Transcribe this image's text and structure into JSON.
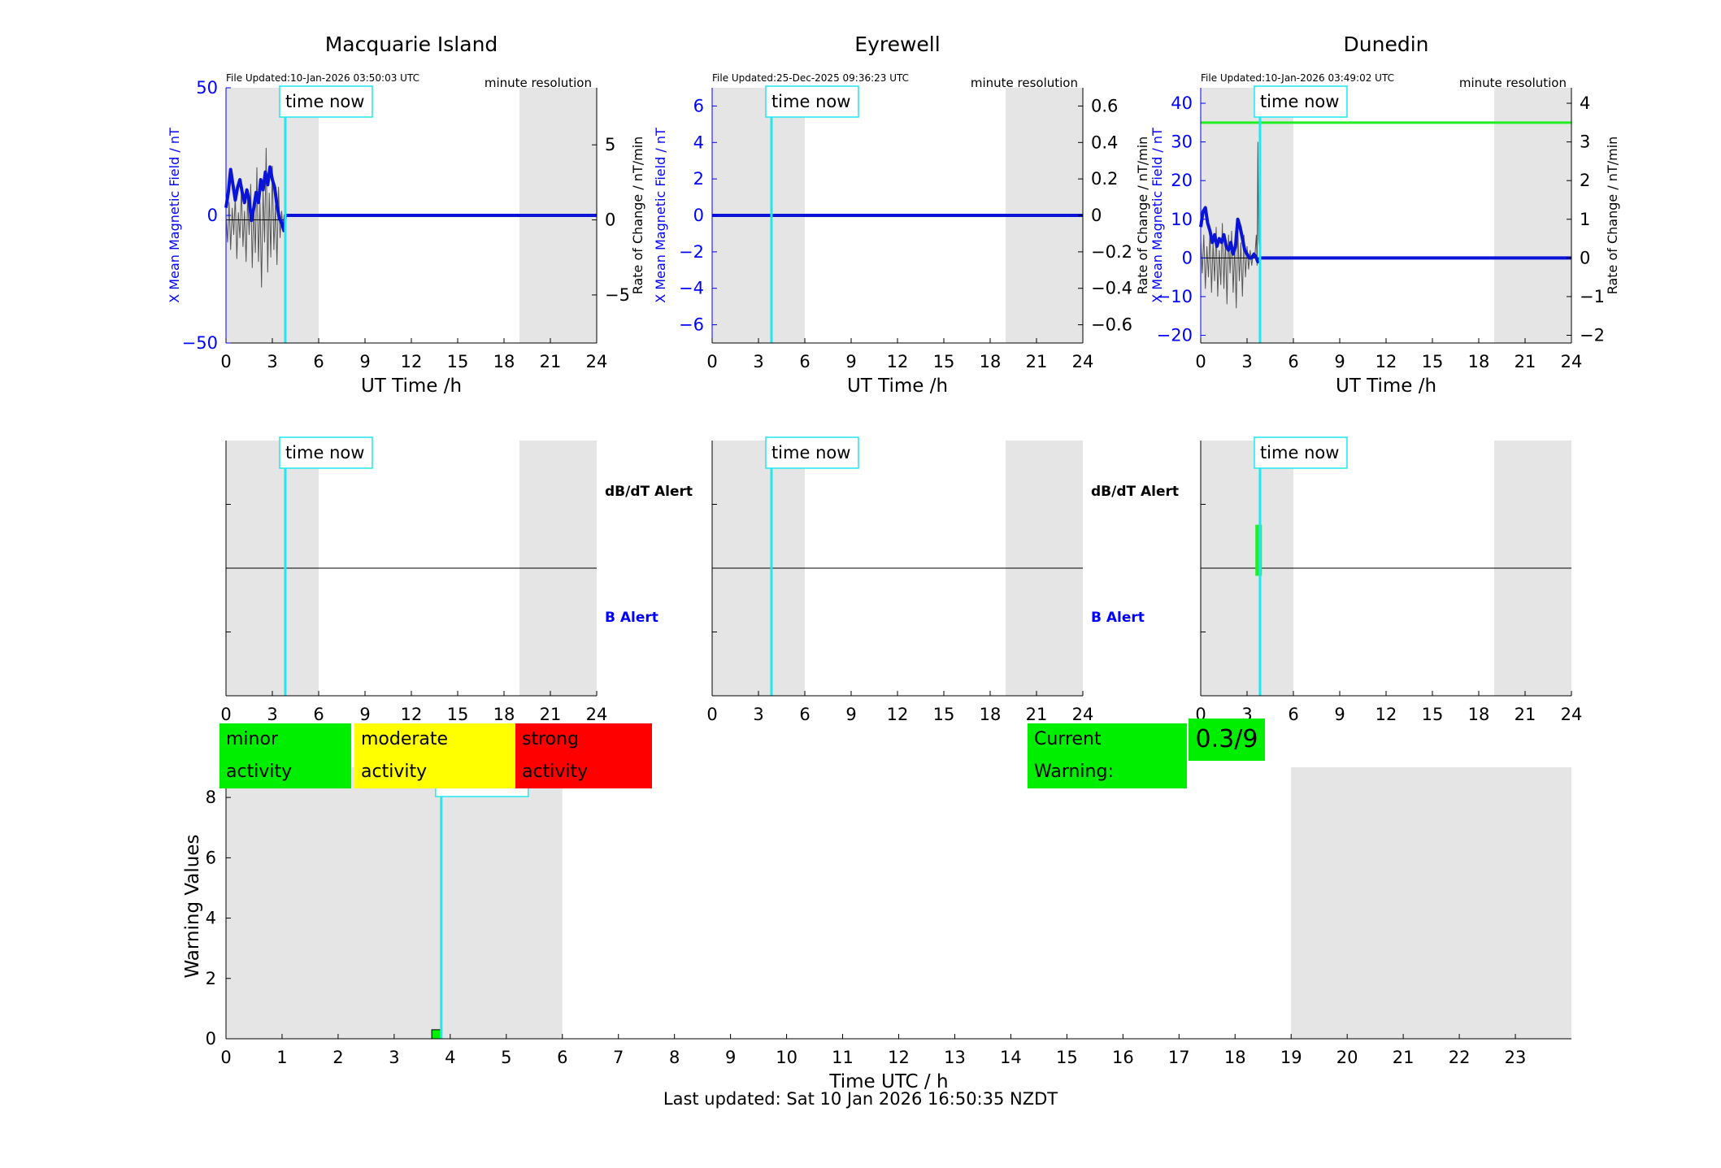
{
  "stations": [
    {
      "name": "Macquarie Island",
      "file_updated": "File Updated:10-Jan-2026 03:50:03 UTC",
      "resolution": "minute resolution",
      "ylabel_left": "X Mean Magnetic Field / nT",
      "ylabel_right": "Rate of Change / nT/min",
      "xlabel": "UT Time /h",
      "ylim_left": [
        -50,
        50
      ],
      "yticks_left": [
        -50,
        0,
        50
      ],
      "ylim_right": [
        -8.2,
        8.8
      ],
      "yticks_right": [
        -5,
        0,
        5
      ],
      "night_bands": [
        [
          0,
          6
        ],
        [
          19,
          24
        ]
      ],
      "time_now": 3.84,
      "field_trace": [
        [
          0,
          3
        ],
        [
          0.15,
          9
        ],
        [
          0.3,
          18
        ],
        [
          0.45,
          12
        ],
        [
          0.6,
          6
        ],
        [
          0.75,
          11
        ],
        [
          0.9,
          14
        ],
        [
          1.05,
          9
        ],
        [
          1.2,
          5
        ],
        [
          1.35,
          10
        ],
        [
          1.5,
          6
        ],
        [
          1.65,
          -2
        ],
        [
          1.8,
          3
        ],
        [
          1.95,
          9
        ],
        [
          2.1,
          5
        ],
        [
          2.25,
          14
        ],
        [
          2.4,
          10
        ],
        [
          2.55,
          17
        ],
        [
          2.7,
          12
        ],
        [
          2.85,
          19
        ],
        [
          3.0,
          14
        ],
        [
          3.15,
          11
        ],
        [
          3.3,
          4
        ],
        [
          3.45,
          -1
        ],
        [
          3.6,
          -3
        ],
        [
          3.75,
          -6
        ],
        [
          3.84,
          0
        ],
        [
          24,
          0
        ]
      ],
      "rate_trace": [
        [
          0,
          0.3
        ],
        [
          0.1,
          -1.5
        ],
        [
          0.2,
          1.2
        ],
        [
          0.3,
          -2.0
        ],
        [
          0.4,
          0.8
        ],
        [
          0.5,
          -1.0
        ],
        [
          0.6,
          1.6
        ],
        [
          0.7,
          -2.6
        ],
        [
          0.8,
          0.5
        ],
        [
          0.9,
          -1.2
        ],
        [
          1.0,
          2.2
        ],
        [
          1.1,
          -1.8
        ],
        [
          1.2,
          0.6
        ],
        [
          1.3,
          -2.8
        ],
        [
          1.4,
          1.5
        ],
        [
          1.5,
          -1.0
        ],
        [
          1.6,
          2.4
        ],
        [
          1.7,
          -3.2
        ],
        [
          1.8,
          0.9
        ],
        [
          1.9,
          -2.2
        ],
        [
          2.0,
          3.5
        ],
        [
          2.1,
          -2.8
        ],
        [
          2.2,
          1.2
        ],
        [
          2.3,
          -4.5
        ],
        [
          2.4,
          2.0
        ],
        [
          2.5,
          -1.5
        ],
        [
          2.6,
          4.8
        ],
        [
          2.7,
          -3.5
        ],
        [
          2.8,
          1.8
        ],
        [
          2.9,
          -2.5
        ],
        [
          3.0,
          3.6
        ],
        [
          3.1,
          -2.0
        ],
        [
          3.2,
          1.0
        ],
        [
          3.3,
          -3.0
        ],
        [
          3.4,
          2.2
        ],
        [
          3.5,
          -1.2
        ],
        [
          3.6,
          0.6
        ],
        [
          3.7,
          -0.8
        ],
        [
          3.84,
          0
        ]
      ],
      "rate_line_end": 3.84,
      "threshold": null
    },
    {
      "name": "Eyrewell",
      "file_updated": "File Updated:25-Dec-2025 09:36:23 UTC",
      "resolution": "minute resolution",
      "ylabel_left": "X Mean Magnetic Field / nT",
      "ylabel_right": "",
      "xlabel": "UT Time /h",
      "ylim_left": [
        -7,
        7
      ],
      "yticks_left": [
        -6,
        -4,
        -2,
        0,
        2,
        4,
        6
      ],
      "ylim_right": [
        -0.7,
        0.7
      ],
      "yticks_right": [
        -0.6,
        -0.4,
        -0.2,
        0,
        0.2,
        0.4,
        0.6
      ],
      "night_bands": [
        [
          0,
          6
        ],
        [
          19,
          24
        ]
      ],
      "time_now": 3.84,
      "field_trace": [
        [
          0,
          0
        ],
        [
          24,
          0
        ]
      ],
      "rate_trace": [],
      "rate_line_end": 24,
      "threshold": null
    },
    {
      "name": "Dunedin",
      "file_updated": "File Updated:10-Jan-2026 03:49:02 UTC",
      "resolution": "minute resolution",
      "ylabel_left": "X Mean Magnetic Field / nT",
      "ylabel_left2": "Rate of Change / nT/min",
      "ylabel_right": "Rate of Change / nT/min",
      "xlabel": "UT Time /h",
      "ylim_left": [
        -22,
        44
      ],
      "yticks_left": [
        -20,
        -10,
        0,
        10,
        20,
        30,
        40
      ],
      "ylim_right": [
        -2.2,
        4.4
      ],
      "yticks_right": [
        -2,
        -1,
        0,
        1,
        2,
        3,
        4
      ],
      "night_bands": [
        [
          0,
          6
        ],
        [
          19,
          24
        ]
      ],
      "time_now": 3.84,
      "field_trace": [
        [
          0,
          8
        ],
        [
          0.15,
          12
        ],
        [
          0.3,
          13
        ],
        [
          0.45,
          9
        ],
        [
          0.6,
          7
        ],
        [
          0.75,
          4
        ],
        [
          0.9,
          6
        ],
        [
          1.05,
          3
        ],
        [
          1.2,
          5
        ],
        [
          1.35,
          4
        ],
        [
          1.5,
          6
        ],
        [
          1.65,
          3
        ],
        [
          1.8,
          2
        ],
        [
          1.95,
          4
        ],
        [
          2.1,
          1
        ],
        [
          2.25,
          3
        ],
        [
          2.4,
          10
        ],
        [
          2.55,
          8
        ],
        [
          2.7,
          5
        ],
        [
          2.85,
          2
        ],
        [
          3.0,
          1
        ],
        [
          3.15,
          0
        ],
        [
          3.3,
          0
        ],
        [
          3.45,
          1
        ],
        [
          3.6,
          0
        ],
        [
          3.7,
          -1
        ],
        [
          3.84,
          0
        ],
        [
          24,
          0
        ]
      ],
      "rate_trace": [
        [
          0,
          0.5
        ],
        [
          0.1,
          -0.4
        ],
        [
          0.2,
          0.6
        ],
        [
          0.3,
          -0.8
        ],
        [
          0.4,
          0.3
        ],
        [
          0.5,
          -0.5
        ],
        [
          0.6,
          0.7
        ],
        [
          0.7,
          -0.9
        ],
        [
          0.8,
          0.4
        ],
        [
          0.9,
          -0.6
        ],
        [
          1.0,
          0.8
        ],
        [
          1.1,
          -1.0
        ],
        [
          1.2,
          0.2
        ],
        [
          1.3,
          -0.7
        ],
        [
          1.4,
          0.9
        ],
        [
          1.5,
          -0.8
        ],
        [
          1.6,
          0.5
        ],
        [
          1.7,
          -1.2
        ],
        [
          1.8,
          0.6
        ],
        [
          1.9,
          -0.4
        ],
        [
          2.0,
          0.7
        ],
        [
          2.1,
          -0.9
        ],
        [
          2.2,
          0.3
        ],
        [
          2.3,
          -1.3
        ],
        [
          2.4,
          0.8
        ],
        [
          2.5,
          -0.6
        ],
        [
          2.6,
          0.4
        ],
        [
          2.7,
          -1.0
        ],
        [
          2.8,
          0.6
        ],
        [
          2.9,
          -0.5
        ],
        [
          3.0,
          0.3
        ],
        [
          3.1,
          -0.3
        ],
        [
          3.2,
          0.2
        ],
        [
          3.3,
          -0.2
        ],
        [
          3.4,
          0.1
        ],
        [
          3.5,
          0
        ],
        [
          3.6,
          0.6
        ],
        [
          3.65,
          -0.2
        ],
        [
          3.7,
          3.0
        ],
        [
          3.75,
          0.5
        ],
        [
          3.84,
          0
        ]
      ],
      "rate_line_end": 24,
      "threshold": 35
    }
  ],
  "alerts": {
    "dbdt_label": "dB/dT Alert",
    "b_label": "B Alert",
    "xticks": [
      0,
      3,
      6,
      9,
      12,
      15,
      18,
      21,
      24
    ],
    "dunedin_dbdt_bar": {
      "x": 3.75,
      "from": 0.47,
      "to": 0.67
    }
  },
  "time_now_label": "time now",
  "legend": {
    "minor": "minor activity",
    "moderate": "moderate activity",
    "strong": "strong activity",
    "current_warning_label": "Current Warning:",
    "current_warning_value": "0.3/9"
  },
  "chart_data": [
    {
      "type": "line",
      "title": "Macquarie Island",
      "xlabel": "UT Time /h",
      "ylabel": "X Mean Magnetic Field / nT",
      "ylabel_right": "Rate of Change / nT/min",
      "xlim": [
        0,
        24
      ],
      "ylim": [
        -50,
        50
      ],
      "ylim_right": [
        -8.2,
        8.8
      ]
    },
    {
      "type": "line",
      "title": "Eyrewell",
      "xlabel": "UT Time /h",
      "ylabel": "X Mean Magnetic Field / nT",
      "xlim": [
        0,
        24
      ],
      "ylim": [
        -7,
        7
      ],
      "ylim_right": [
        -0.7,
        0.7
      ]
    },
    {
      "type": "line",
      "title": "Dunedin",
      "xlabel": "UT Time /h",
      "ylabel": "X Mean Magnetic Field / nT",
      "ylabel_right": "Rate of Change / nT/min",
      "xlim": [
        0,
        24
      ],
      "ylim": [
        -22,
        44
      ],
      "ylim_right": [
        -2.2,
        4.4
      ]
    },
    {
      "type": "bar",
      "xlabel": "Time UTC / h",
      "ylabel": "Warning Values",
      "xlim": [
        0,
        24
      ],
      "ylim": [
        0,
        9
      ],
      "xticks": [
        0,
        1,
        2,
        3,
        4,
        5,
        6,
        7,
        8,
        9,
        10,
        11,
        12,
        13,
        14,
        15,
        16,
        17,
        18,
        19,
        20,
        21,
        22,
        23
      ],
      "yticks": [
        0,
        2,
        4,
        6,
        8
      ],
      "night_bands": [
        [
          0,
          6
        ],
        [
          19,
          24
        ]
      ],
      "time_now": 3.84,
      "bars": [
        {
          "x_start": 3.67,
          "x_end": 3.84,
          "value": 0.3
        }
      ]
    }
  ],
  "footer": "Last updated: Sat 10 Jan 2026 16:50:35 NZDT",
  "colors": {
    "night": "#e5e5e5",
    "field": "#0a14d6",
    "rate": "#555555",
    "time_now": "#1fe8f0",
    "threshold": "#22ee22",
    "minor": "#00ee00",
    "moderate": "#ffff00",
    "strong": "#ff0000",
    "axis_blue": "#0000ff"
  }
}
